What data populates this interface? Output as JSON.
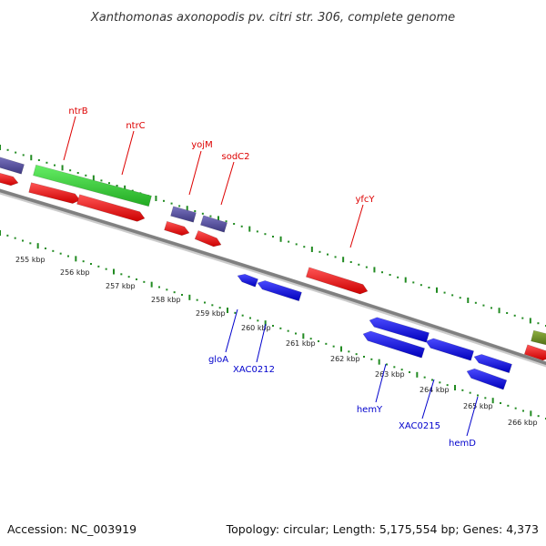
{
  "title": "Xanthomonas axonopodis pv. citri str. 306, complete genome",
  "footer": {
    "accession": "Accession: NC_003919",
    "summary": "Topology: circular; Length: 5,175,554 bp; Genes: 4,373"
  },
  "scale_labels": [
    "255 kbp",
    "256 kbp",
    "257 kbp",
    "258 kbp",
    "259 kbp",
    "260 kbp",
    "261 kbp",
    "262 kbp",
    "263 kbp",
    "264 kbp",
    "265 kbp",
    "266 kbp"
  ],
  "gene_labels_forward": [
    "ntrB",
    "ntrC",
    "yojM",
    "sodC2",
    "yfcY"
  ],
  "gene_labels_reverse": [
    "gloA",
    "XAC0212",
    "hemY",
    "XAC0215",
    "hemD"
  ],
  "colors": {
    "forward_label": "#dd0000",
    "reverse_label": "#0000cc",
    "forward_cds": "#ee0000",
    "reverse_cds": "#1010ee",
    "rna": "#33cc33",
    "other": "#55509a",
    "other2": "#6b8e23",
    "backbone": "#888888",
    "gc_dots": "#228b22"
  }
}
